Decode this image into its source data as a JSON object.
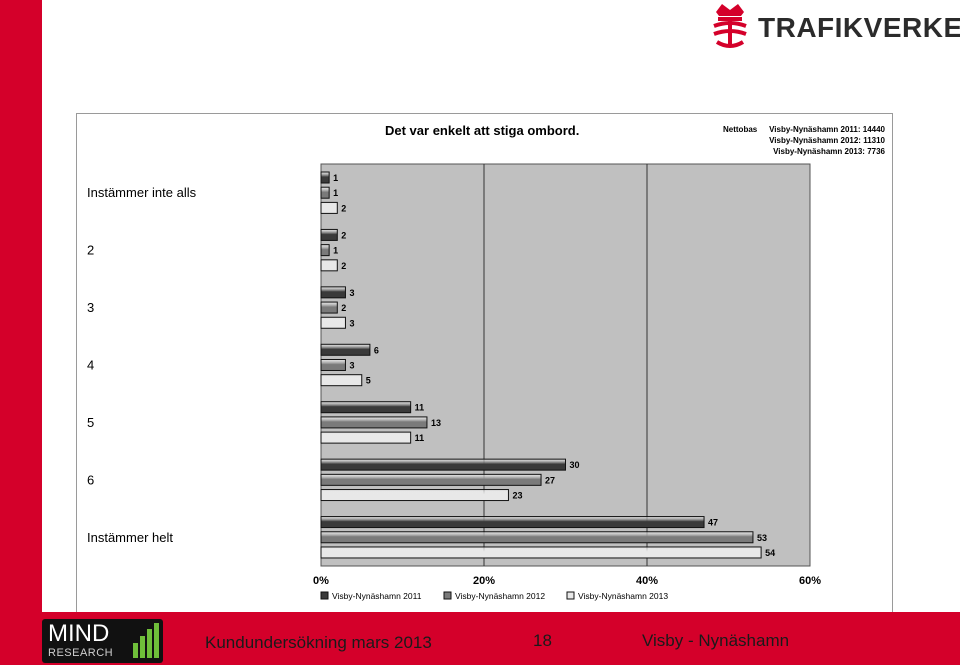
{
  "logo": {
    "brand": "TRAFIKVERKET",
    "icon": "crown-emblem-icon"
  },
  "footer": {
    "left_text": "Kundundersökning mars 2013",
    "page_number": "18",
    "right_text": "Visby - Nynäshamn",
    "mind_logo_word": "MIND",
    "mind_logo_sub": "RESEARCH"
  },
  "colors": {
    "accent_red": "#d4002a",
    "plot_bg": "#c0c0c0"
  },
  "chart_data": {
    "type": "bar",
    "orientation": "horizontal",
    "title": "Det var enkelt att stiga ombord.",
    "base_label": "Nettobas",
    "base_lines": [
      "Visby-Nynäshamn 2011: 14440",
      "Visby-Nynäshamn 2012: 11310",
      "Visby-Nynäshamn 2013: 7736"
    ],
    "categories": [
      "Instämmer inte alls",
      "2",
      "3",
      "4",
      "5",
      "6",
      "Instämmer helt"
    ],
    "series": [
      {
        "name": "Visby-Nynäshamn 2011",
        "values": [
          1,
          2,
          3,
          6,
          11,
          30,
          47
        ],
        "color": "#3a3a3a"
      },
      {
        "name": "Visby-Nynäshamn 2012",
        "values": [
          1,
          1,
          2,
          3,
          13,
          27,
          53
        ],
        "color": "#7a7a7a"
      },
      {
        "name": "Visby-Nynäshamn 2013",
        "values": [
          2,
          2,
          3,
          5,
          11,
          23,
          54
        ],
        "color": "#e8e8e8"
      }
    ],
    "x_ticks": [
      "0%",
      "20%",
      "40%",
      "60%"
    ],
    "xlim": [
      0,
      60
    ],
    "grid": true,
    "legend_position": "bottom"
  }
}
